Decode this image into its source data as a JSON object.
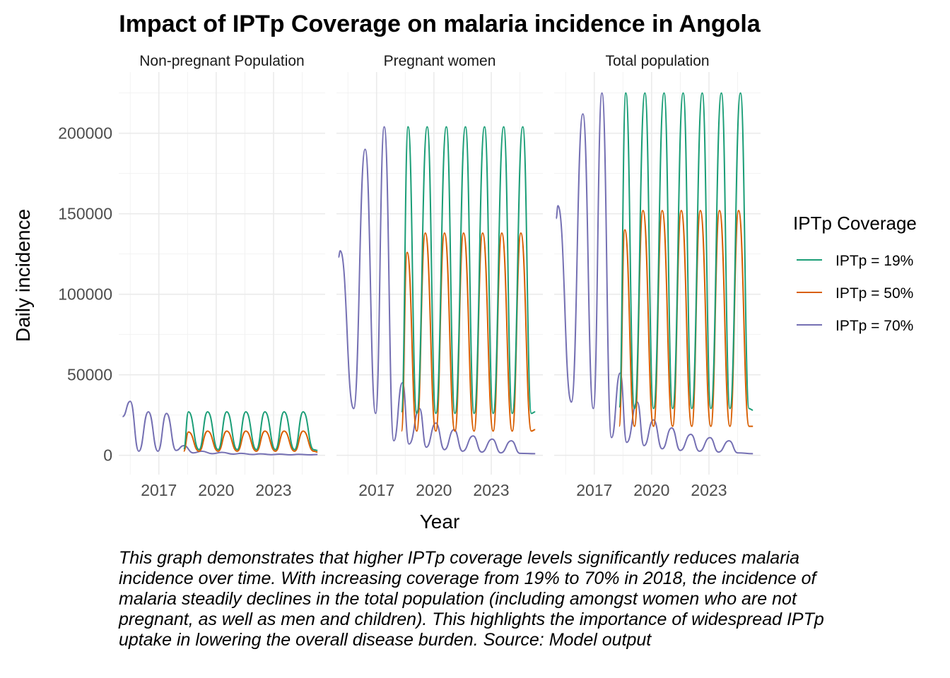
{
  "chart_data": {
    "type": "line",
    "title": "Impact of IPTp Coverage on malaria incidence in Angola",
    "xlabel": "Year",
    "ylabel": "Daily incidence",
    "xlim": [
      2014.9,
      2025.7
    ],
    "ylim": [
      -12000,
      238000
    ],
    "x_ticks": [
      2017,
      2020,
      2023
    ],
    "y_ticks": [
      0,
      50000,
      100000,
      150000,
      200000
    ],
    "grid": true,
    "legend": {
      "title": "IPTp Coverage",
      "position": "right",
      "entries": [
        "IPTp = 19%",
        "IPTp = 50%",
        "IPTp = 70%"
      ]
    },
    "colors": {
      "IPTp = 19%": "#1B9E77",
      "IPTp = 50%": "#D95F02",
      "IPTp = 70%": "#7570B3"
    },
    "panels": [
      {
        "name": "Non-pregnant Population",
        "series": [
          {
            "name": "IPTp = 70%",
            "x": [
              2015.1,
              2015.5,
              2015.95,
              2016.45,
              2016.95,
              2017.4,
              2017.9,
              2018.3,
              2018.8,
              2019.25,
              2019.8,
              2020.3,
              2020.9,
              2021.3,
              2021.9,
              2022.3,
              2022.9,
              2023.3,
              2023.9,
              2024.3,
              2024.9,
              2025.3
            ],
            "y": [
              24000,
              33500,
              2500,
              27000,
              2500,
              26000,
              3000,
              6000,
              1500,
              2500,
              1000,
              1800,
              700,
              1200,
              500,
              900,
              400,
              700,
              300,
              600,
              300,
              500
            ]
          },
          {
            "name": "IPTp = 50%",
            "x": [
              2018.3,
              2018.55,
              2019.1,
              2019.55,
              2020.1,
              2020.55,
              2021.1,
              2021.55,
              2022.1,
              2022.55,
              2023.1,
              2023.55,
              2024.1,
              2024.55,
              2025.1,
              2025.3
            ],
            "y": [
              2500,
              14500,
              2500,
              15000,
              2500,
              15000,
              2500,
              15000,
              2500,
              15000,
              2500,
              15000,
              2500,
              15000,
              2500,
              2000
            ]
          },
          {
            "name": "IPTp = 19%",
            "x": [
              2018.3,
              2018.55,
              2019.1,
              2019.55,
              2020.1,
              2020.55,
              2021.1,
              2021.55,
              2022.1,
              2022.55,
              2023.1,
              2023.55,
              2024.1,
              2024.55,
              2025.1,
              2025.3
            ],
            "y": [
              4000,
              27000,
              3500,
              27000,
              3500,
              27000,
              3500,
              27000,
              3500,
              27000,
              3500,
              27000,
              3500,
              27000,
              3500,
              3000
            ]
          }
        ]
      },
      {
        "name": "Pregnant women",
        "series": [
          {
            "name": "IPTp = 70%",
            "x": [
              2015.0,
              2015.1,
              2015.8,
              2016.4,
              2016.95,
              2017.4,
              2017.9,
              2018.35,
              2018.7,
              2019.25,
              2019.6,
              2020.1,
              2020.55,
              2021.05,
              2021.5,
              2022.05,
              2022.5,
              2023.05,
              2023.5,
              2024.05,
              2024.5,
              2025.3
            ],
            "y": [
              123000,
              127000,
              29000,
              190000,
              26000,
              204000,
              9000,
              45000,
              7000,
              29000,
              5000,
              20000,
              3500,
              16000,
              2500,
              12000,
              2000,
              10000,
              1500,
              9000,
              1200,
              1000
            ]
          },
          {
            "name": "IPTp = 50%",
            "x": [
              2018.3,
              2018.6,
              2019.1,
              2019.55,
              2020.1,
              2020.55,
              2021.1,
              2021.55,
              2022.1,
              2022.55,
              2023.1,
              2023.55,
              2024.1,
              2024.55,
              2025.1,
              2025.3
            ],
            "y": [
              15000,
              126000,
              15000,
              138000,
              15000,
              138000,
              15000,
              138000,
              15000,
              138000,
              15000,
              138000,
              15000,
              138000,
              15000,
              16000
            ]
          },
          {
            "name": "IPTp = 19%",
            "x": [
              2018.3,
              2018.65,
              2019.1,
              2019.65,
              2020.1,
              2020.65,
              2021.1,
              2021.65,
              2022.1,
              2022.65,
              2023.1,
              2023.65,
              2024.1,
              2024.65,
              2025.1,
              2025.3
            ],
            "y": [
              27000,
              204000,
              26000,
              204000,
              26000,
              204000,
              26000,
              204000,
              26000,
              204000,
              26000,
              204000,
              26000,
              204000,
              26000,
              27000
            ]
          }
        ]
      },
      {
        "name": "Total population",
        "series": [
          {
            "name": "IPTp = 70%",
            "x": [
              2015.0,
              2015.1,
              2015.8,
              2016.4,
              2016.95,
              2017.4,
              2017.9,
              2018.35,
              2018.7,
              2019.25,
              2019.6,
              2020.1,
              2020.55,
              2021.05,
              2021.5,
              2022.05,
              2022.5,
              2023.05,
              2023.5,
              2024.05,
              2024.5,
              2025.3
            ],
            "y": [
              147000,
              155000,
              33000,
              212000,
              29000,
              225000,
              11000,
              51000,
              8000,
              33000,
              6000,
              22000,
              4000,
              17000,
              3000,
              13000,
              2500,
              11000,
              2000,
              9000,
              1500,
              1000
            ]
          },
          {
            "name": "IPTp = 50%",
            "x": [
              2018.3,
              2018.6,
              2019.1,
              2019.55,
              2020.1,
              2020.55,
              2021.1,
              2021.55,
              2022.1,
              2022.55,
              2023.1,
              2023.55,
              2024.1,
              2024.55,
              2025.1,
              2025.3
            ],
            "y": [
              18000,
              140000,
              18000,
              152000,
              18000,
              152000,
              18000,
              152000,
              18000,
              152000,
              18000,
              152000,
              18000,
              152000,
              18000,
              18000
            ]
          },
          {
            "name": "IPTp = 19%",
            "x": [
              2018.3,
              2018.65,
              2019.1,
              2019.65,
              2020.1,
              2020.65,
              2021.1,
              2021.65,
              2022.1,
              2022.65,
              2023.1,
              2023.65,
              2024.1,
              2024.65,
              2025.1,
              2025.3
            ],
            "y": [
              30000,
              225000,
              29000,
              225000,
              29000,
              225000,
              29000,
              225000,
              29000,
              225000,
              29000,
              225000,
              29000,
              225000,
              29000,
              28000
            ]
          }
        ]
      }
    ]
  },
  "caption": "This graph demonstrates that higher IPTp coverage levels significantly reduces malaria incidence over time. With increasing coverage from 19% to 70% in 2018, the incidence of malaria steadily declines in the total population (including amongst women who are not pregnant, as well as men and children). This highlights the importance of widespread IPTp uptake in lowering the overall disease burden. Source: Model output"
}
